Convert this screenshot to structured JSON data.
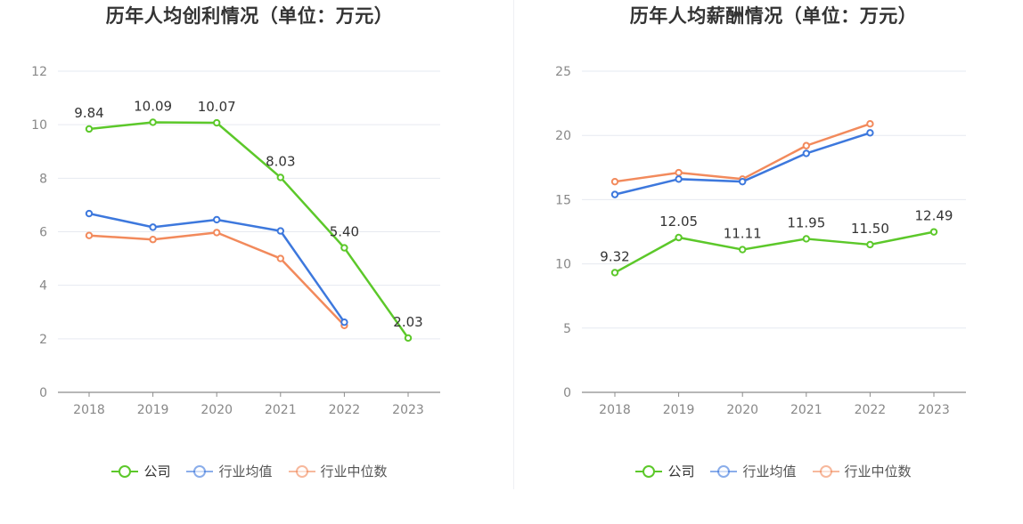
{
  "chart_data": [
    {
      "type": "line",
      "title": "历年人均创利情况（单位：万元）",
      "categories": [
        "2018",
        "2019",
        "2020",
        "2021",
        "2022",
        "2023"
      ],
      "ylim": [
        0,
        12
      ],
      "yticks": [
        0,
        2,
        4,
        6,
        8,
        10,
        12
      ],
      "grid": true,
      "legend_position": "bottom-center",
      "series": [
        {
          "name": "公司",
          "color": "#5cc82a",
          "values": [
            9.84,
            10.09,
            10.07,
            8.03,
            5.4,
            2.03
          ],
          "labels": [
            "9.84",
            "10.09",
            "10.07",
            "8.03",
            "5.40",
            "2.03"
          ]
        },
        {
          "name": "行业均值",
          "color": "#3d78dd",
          "values": [
            6.68,
            6.17,
            6.45,
            6.03,
            2.62,
            null
          ],
          "labels": null
        },
        {
          "name": "行业中位数",
          "color": "#f28a5c",
          "values": [
            5.86,
            5.71,
            5.97,
            5.0,
            2.5,
            null
          ],
          "labels": null
        }
      ]
    },
    {
      "type": "line",
      "title": "历年人均薪酬情况（单位：万元）",
      "categories": [
        "2018",
        "2019",
        "2020",
        "2021",
        "2022",
        "2023"
      ],
      "ylim": [
        0,
        25
      ],
      "yticks": [
        0,
        5,
        10,
        15,
        20,
        25
      ],
      "grid": true,
      "legend_position": "bottom-center",
      "series": [
        {
          "name": "公司",
          "color": "#5cc82a",
          "values": [
            9.32,
            12.05,
            11.11,
            11.95,
            11.5,
            12.49
          ],
          "labels": [
            "9.32",
            "12.05",
            "11.11",
            "11.95",
            "11.50",
            "12.49"
          ]
        },
        {
          "name": "行业均值",
          "color": "#3d78dd",
          "values": [
            15.4,
            16.6,
            16.4,
            18.6,
            20.2,
            null
          ],
          "labels": null
        },
        {
          "name": "行业中位数",
          "color": "#f28a5c",
          "values": [
            16.4,
            17.1,
            16.6,
            19.2,
            20.9,
            null
          ],
          "labels": null
        }
      ]
    }
  ]
}
